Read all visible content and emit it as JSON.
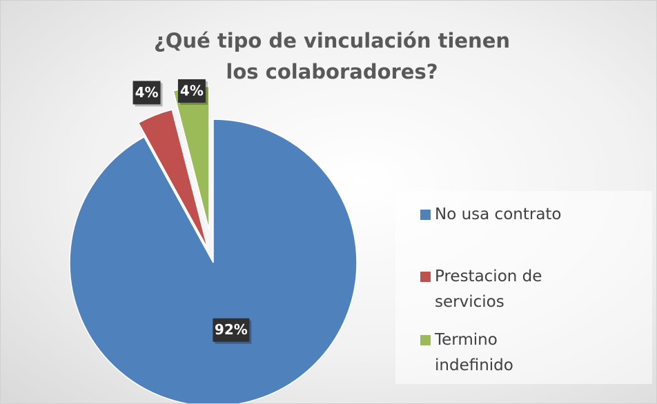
{
  "chart_data": {
    "type": "pie",
    "title": "¿Qué tipo de vinculación tienen los colaboradores?",
    "categories": [
      "No usa contrato",
      "Prestacion de servicios",
      "Termino indefinido"
    ],
    "values": [
      92,
      4,
      4
    ],
    "value_labels": [
      "92%",
      "4%",
      "4%"
    ],
    "colors": [
      "#4f81bd",
      "#c0504d",
      "#9bbb59"
    ],
    "legend": "right"
  }
}
